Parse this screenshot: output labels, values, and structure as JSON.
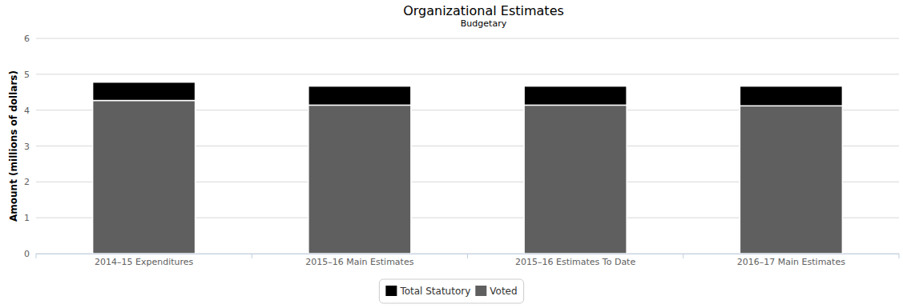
{
  "chart_data": {
    "type": "bar",
    "stacked": true,
    "title": "Organizational Estimates",
    "subtitle": "Budgetary",
    "y_label": "Amount (millions of dollars)",
    "categories": [
      "2014–15 Expenditures",
      "2015–16 Main Estimates",
      "2015–16 Estimates To Date",
      "2016–17 Main Estimates"
    ],
    "series": [
      {
        "name": "Total Statutory",
        "color": "#000000",
        "values": [
          0.51,
          0.53,
          0.53,
          0.55
        ]
      },
      {
        "name": "Voted",
        "color": "#5f5f5f",
        "values": [
          4.27,
          4.14,
          4.14,
          4.12
        ]
      }
    ],
    "ylim": [
      0,
      6
    ],
    "yticks": [
      0,
      1,
      2,
      3,
      4,
      5,
      6
    ],
    "grid": true,
    "legend": "bottom"
  }
}
